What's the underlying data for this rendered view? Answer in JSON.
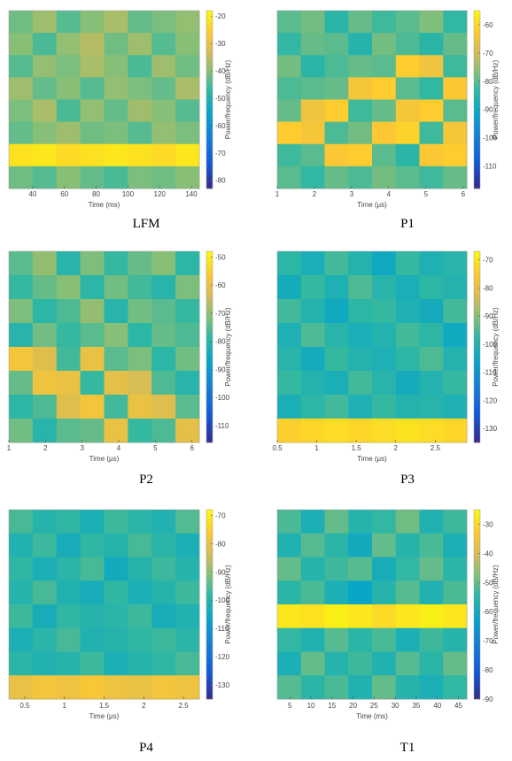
{
  "chart_data": [
    {
      "type": "heatmap",
      "caption": "LFM",
      "xlabel": "Time (ms)",
      "cbar_label": "Power/frequency (dB/Hz)",
      "xlim": [
        25,
        145
      ],
      "xticks": [
        40,
        60,
        80,
        100,
        120,
        140
      ],
      "clim": [
        -83,
        -18
      ],
      "cticks": [
        -20,
        -30,
        -40,
        -50,
        -60,
        -70,
        -80
      ],
      "z": [
        [
          -42,
          -38,
          -44,
          -40,
          -37,
          -43,
          -41,
          -39
        ],
        [
          -40,
          -45,
          -39,
          -36,
          -42,
          -38,
          -44,
          -40
        ],
        [
          -44,
          -39,
          -41,
          -37,
          -40,
          -45,
          -38,
          -42
        ],
        [
          -38,
          -43,
          -40,
          -44,
          -39,
          -41,
          -43,
          -37
        ],
        [
          -41,
          -37,
          -45,
          -39,
          -43,
          -38,
          -40,
          -44
        ],
        [
          -43,
          -40,
          -38,
          -42,
          -41,
          -44,
          -39,
          -41
        ],
        [
          -22,
          -21,
          -23,
          -22,
          -21,
          -22,
          -23,
          -21
        ],
        [
          -42,
          -44,
          -40,
          -43,
          -45,
          -41,
          -42,
          -40
        ]
      ]
    },
    {
      "type": "heatmap",
      "caption": "P1",
      "xlabel": "Time (μs)",
      "cbar_label": "Power/frequency (dB/Hz)",
      "xlim": [
        1,
        6.1
      ],
      "xticks": [
        1,
        2,
        3,
        4,
        5,
        6
      ],
      "clim": [
        -118,
        -55
      ],
      "cticks": [
        -60,
        -70,
        -80,
        -90,
        -100,
        -110
      ],
      "z": [
        [
          -80,
          -78,
          -84,
          -79,
          -82,
          -80,
          -77,
          -83
        ],
        [
          -83,
          -79,
          -80,
          -85,
          -78,
          -81,
          -84,
          -79
        ],
        [
          -78,
          -84,
          -81,
          -79,
          -80,
          -62,
          -65,
          -82
        ],
        [
          -81,
          -80,
          -79,
          -64,
          -62,
          -80,
          -83,
          -63
        ],
        [
          -79,
          -65,
          -62,
          -82,
          -79,
          -64,
          -62,
          -80
        ],
        [
          -62,
          -64,
          -81,
          -78,
          -63,
          -61,
          -82,
          -64
        ],
        [
          -82,
          -80,
          -63,
          -62,
          -80,
          -84,
          -63,
          -62
        ],
        [
          -80,
          -83,
          -79,
          -81,
          -78,
          -80,
          -82,
          -79
        ]
      ]
    },
    {
      "type": "heatmap",
      "caption": "P2",
      "xlabel": "Time (μs)",
      "cbar_label": "Power/frequency (dB/Hz)",
      "xlim": [
        1,
        6.2
      ],
      "xticks": [
        1,
        2,
        3,
        4,
        5,
        6
      ],
      "clim": [
        -116,
        -48
      ],
      "cticks": [
        -50,
        -60,
        -70,
        -80,
        -90,
        -100,
        -110
      ],
      "z": [
        [
          -75,
          -70,
          -80,
          -72,
          -78,
          -74,
          -71,
          -79
        ],
        [
          -78,
          -74,
          -71,
          -79,
          -73,
          -77,
          -80,
          -72
        ],
        [
          -72,
          -79,
          -76,
          -70,
          -80,
          -73,
          -75,
          -78
        ],
        [
          -80,
          -73,
          -78,
          -75,
          -71,
          -79,
          -74,
          -76
        ],
        [
          -58,
          -62,
          -77,
          -60,
          -75,
          -72,
          -79,
          -73
        ],
        [
          -74,
          -59,
          -60,
          -78,
          -61,
          -63,
          -76,
          -80
        ],
        [
          -79,
          -76,
          -62,
          -58,
          -77,
          -60,
          -62,
          -75
        ],
        [
          -73,
          -80,
          -75,
          -74,
          -60,
          -78,
          -76,
          -61
        ]
      ]
    },
    {
      "type": "heatmap",
      "caption": "P3",
      "xlabel": "Time (μs)",
      "cbar_label": "Power/frequency (dB/Hz)",
      "xlim": [
        0.5,
        2.9
      ],
      "xticks": [
        0.5,
        1,
        1.5,
        2,
        2.5
      ],
      "clim": [
        -135,
        -67
      ],
      "cticks": [
        -70,
        -80,
        -90,
        -100,
        -110,
        -120,
        -130
      ],
      "z": [
        [
          -98,
          -102,
          -96,
          -100,
          -104,
          -97,
          -101,
          -99
        ],
        [
          -103,
          -97,
          -101,
          -95,
          -99,
          -102,
          -98,
          -100
        ],
        [
          -96,
          -100,
          -104,
          -98,
          -97,
          -101,
          -103,
          -96
        ],
        [
          -101,
          -95,
          -99,
          -102,
          -100,
          -96,
          -98,
          -104
        ],
        [
          -99,
          -103,
          -97,
          -100,
          -101,
          -98,
          -95,
          -100
        ],
        [
          -97,
          -100,
          -102,
          -96,
          -99,
          -103,
          -100,
          -97
        ],
        [
          -102,
          -98,
          -96,
          -101,
          -97,
          -100,
          -99,
          -101
        ],
        [
          -74,
          -73,
          -72,
          -73,
          -72,
          -71,
          -72,
          -73
        ]
      ]
    },
    {
      "type": "heatmap",
      "caption": "P4",
      "xlabel": "Time (μs)",
      "cbar_label": "Power/frequency (dB/Hz)",
      "xlim": [
        0.3,
        2.7
      ],
      "xticks": [
        0.5,
        1,
        1.5,
        2,
        2.5
      ],
      "clim": [
        -135,
        -68
      ],
      "cticks": [
        -70,
        -80,
        -90,
        -100,
        -110,
        -120,
        -130
      ],
      "z": [
        [
          -96,
          -100,
          -98,
          -102,
          -97,
          -99,
          -101,
          -95
        ],
        [
          -101,
          -97,
          -103,
          -98,
          -100,
          -96,
          -99,
          -102
        ],
        [
          -98,
          -102,
          -99,
          -96,
          -104,
          -100,
          -97,
          -100
        ],
        [
          -100,
          -96,
          -101,
          -103,
          -98,
          -102,
          -100,
          -97
        ],
        [
          -97,
          -103,
          -98,
          -100,
          -99,
          -97,
          -103,
          -101
        ],
        [
          -102,
          -99,
          -96,
          -101,
          -100,
          -98,
          -97,
          -99
        ],
        [
          -99,
          -101,
          -100,
          -97,
          -102,
          -100,
          -98,
          -96
        ],
        [
          -80,
          -78,
          -79,
          -77,
          -79,
          -80,
          -78,
          -79
        ]
      ]
    },
    {
      "type": "heatmap",
      "caption": "T1",
      "xlabel": "Time (ms)",
      "cbar_label": "Power/frequency (dB/Hz)",
      "xlim": [
        2,
        47
      ],
      "xticks": [
        5,
        10,
        15,
        20,
        25,
        30,
        35,
        40,
        45
      ],
      "clim": [
        -90,
        -25
      ],
      "cticks": [
        -30,
        -40,
        -50,
        -60,
        -70,
        -80,
        -90
      ],
      "z": [
        [
          -52,
          -58,
          -50,
          -56,
          -54,
          -49,
          -57,
          -53
        ],
        [
          -57,
          -51,
          -55,
          -60,
          -50,
          -56,
          -52,
          -58
        ],
        [
          -50,
          -56,
          -53,
          -51,
          -59,
          -54,
          -50,
          -55
        ],
        [
          -55,
          -52,
          -58,
          -62,
          -56,
          -51,
          -57,
          -52
        ],
        [
          -28,
          -29,
          -27,
          -28,
          -30,
          -28,
          -27,
          -28
        ],
        [
          -54,
          -57,
          -51,
          -55,
          -52,
          -58,
          -53,
          -56
        ],
        [
          -58,
          -50,
          -56,
          -53,
          -57,
          -51,
          -55,
          -50
        ],
        [
          -51,
          -55,
          -52,
          -57,
          -50,
          -56,
          -58,
          -54
        ]
      ]
    }
  ]
}
